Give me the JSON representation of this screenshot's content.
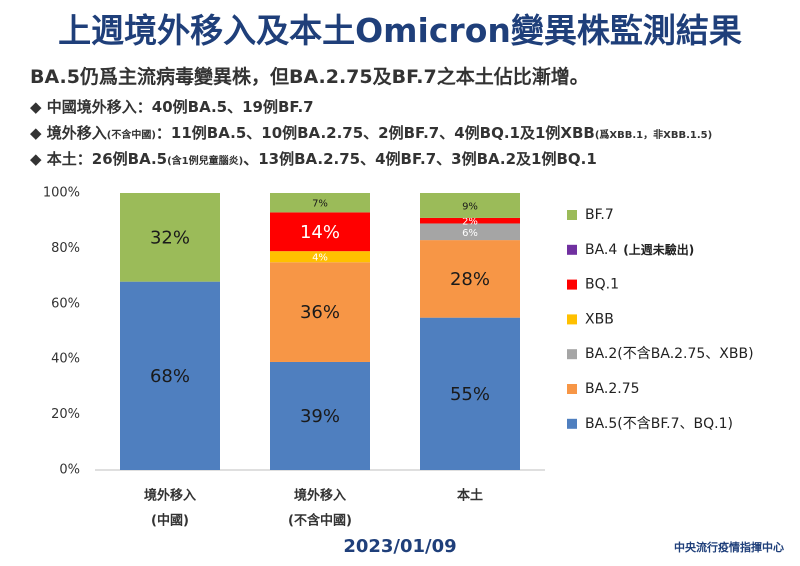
{
  "header": {
    "title": "上週境外移入及本土Omicron變異株監測結果",
    "subtitle": "BA.5仍爲主流病毒變異株，但BA.2.75及BF.7之本土佔比漸增。",
    "bullets": [
      [
        {
          "text": "中國境外移入：40例BA.5、19例BF.7"
        }
      ],
      [
        {
          "text": "境外移入"
        },
        {
          "text": "(不含中國)",
          "small": true
        },
        {
          "text": "：11例BA.5、10例BA.2.75、2例BF.7、4例BQ.1及1例XBB"
        },
        {
          "text": "(爲XBB.1，非XBB.1.5)",
          "small": true
        }
      ],
      [
        {
          "text": "本土：26例BA.5"
        },
        {
          "text": "(含1例兒童腦炎)",
          "small": true
        },
        {
          "text": "、13例BA.2.75、4例BF.7、3例BA.2及1例BQ.1"
        }
      ]
    ]
  },
  "chart_data": {
    "type": "stacked_bar",
    "categories": [
      "境外移入",
      "境外移入",
      "本土"
    ],
    "category_sublabels": [
      "(中國)",
      "(不含中國)",
      null
    ],
    "series": [
      {
        "name": "BA.5(不含BF.7、BQ.1)",
        "color": "#4f7fbf",
        "label_color": "#1a1a1a",
        "values": [
          68,
          39,
          55
        ],
        "value_labels": [
          "68%",
          "39%",
          "55%"
        ]
      },
      {
        "name": "BA.2.75",
        "color": "#f79646",
        "label_color": "#1a1a1a",
        "values": [
          0,
          36,
          28
        ],
        "value_labels": [
          null,
          "36%",
          "28%"
        ]
      },
      {
        "name": "BA.2(不含BA.2.75、XBB)",
        "color": "#a5a5a5",
        "label_color": "#ffffff",
        "values": [
          0,
          0,
          6
        ],
        "value_labels": [
          null,
          null,
          "6%"
        ]
      },
      {
        "name": "XBB",
        "color": "#ffc000",
        "label_color": "#ffffff",
        "values": [
          0,
          4,
          0
        ],
        "value_labels": [
          null,
          "4%",
          null
        ]
      },
      {
        "name": "BQ.1",
        "color": "#ff0000",
        "label_color": "#ffffff",
        "values": [
          0,
          14,
          2
        ],
        "value_labels": [
          null,
          "14%",
          "2%"
        ]
      },
      {
        "name": "BA.4",
        "note": "(上週未驗出)",
        "color": "#7030a0",
        "label_color": "#ffffff",
        "values": [
          0,
          0,
          0
        ],
        "value_labels": [
          null,
          null,
          null
        ]
      },
      {
        "name": "BF.7",
        "color": "#9bbb59",
        "label_color": "#1a1a1a",
        "values": [
          32,
          7,
          9
        ],
        "value_labels": [
          "32%",
          "7%",
          "9%"
        ]
      }
    ],
    "ylim": [
      0,
      100
    ],
    "yticks": [
      {
        "value": 0,
        "label": "0%"
      },
      {
        "value": 20,
        "label": "20%"
      },
      {
        "value": 40,
        "label": "40%"
      },
      {
        "value": 60,
        "label": "60%"
      },
      {
        "value": 80,
        "label": "80%"
      },
      {
        "value": 100,
        "label": "100%"
      }
    ],
    "grid": false
  },
  "footer": {
    "date": "2023/01/09",
    "source": "中央流行疫情指揮中心"
  }
}
